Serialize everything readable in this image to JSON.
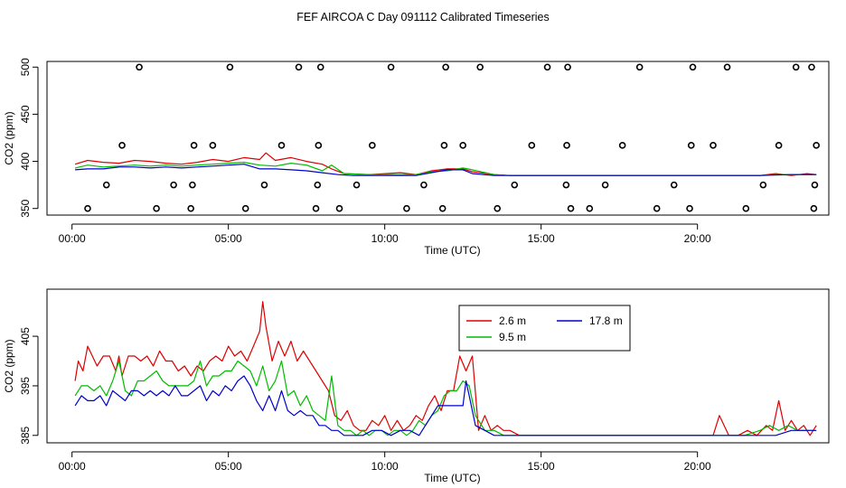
{
  "title": "FEF AIRCOA C  Day 091112  Calibrated Timeseries",
  "colors": {
    "c26": "#dd0000",
    "c95": "#00bb00",
    "c178": "#0000cc",
    "axis": "#000000"
  },
  "chart_data": [
    {
      "type": "line",
      "name": "full-range",
      "xlabel": "Time (UTC)",
      "ylabel": "CO2 (ppm)",
      "xlim": [
        -0.8,
        24.2
      ],
      "ylim": [
        343,
        506
      ],
      "xticks": [
        0,
        5,
        10,
        15,
        20
      ],
      "xtick_labels": [
        "00:00",
        "05:00",
        "10:00",
        "15:00",
        "20:00"
      ],
      "yticks": [
        350,
        400,
        450,
        500
      ],
      "ytick_labels": [
        "350",
        "400",
        "450",
        "500"
      ],
      "series": [
        {
          "name": "2.6 m",
          "color": "#dd0000",
          "x": [
            0.1,
            0.5,
            1,
            1.5,
            2,
            2.5,
            3,
            3.5,
            4,
            4.5,
            5,
            5.5,
            6,
            6.2,
            6.5,
            7,
            7.5,
            8,
            8.3,
            8.7,
            9.5,
            10.5,
            11,
            11.5,
            12,
            12.5,
            12.8,
            13.5,
            14,
            15,
            16,
            17,
            18,
            19,
            20,
            21,
            22,
            22.5,
            23,
            23.5,
            23.8
          ],
          "y": [
            397,
            401,
            399,
            398,
            401,
            400,
            398,
            397,
            399,
            402,
            400,
            404,
            402,
            409,
            401,
            404,
            400,
            397,
            392,
            387,
            386,
            388,
            386,
            390,
            392,
            392,
            389,
            386,
            385,
            385,
            385,
            385,
            385,
            385,
            385,
            385,
            385,
            387,
            385,
            387,
            386
          ]
        },
        {
          "name": "9.5 m",
          "color": "#00bb00",
          "x": [
            0.1,
            0.5,
            1,
            1.5,
            2,
            2.5,
            3,
            3.5,
            4,
            4.5,
            5,
            5.5,
            6,
            6.5,
            7,
            7.5,
            8,
            8.3,
            8.7,
            9.5,
            10.5,
            11,
            11.5,
            12,
            12.5,
            12.8,
            13.5,
            14,
            15,
            16,
            17,
            18,
            19,
            20,
            21,
            22,
            22.5,
            23,
            23.5,
            23.8
          ],
          "y": [
            393,
            396,
            394,
            395,
            396,
            395,
            396,
            395,
            396,
            397,
            398,
            399,
            396,
            395,
            398,
            396,
            390,
            396,
            387,
            386,
            386,
            386,
            389,
            390,
            393,
            391,
            386,
            385,
            385,
            385,
            385,
            385,
            385,
            385,
            385,
            385,
            386,
            386,
            386,
            386
          ]
        },
        {
          "name": "17.8 m",
          "color": "#0000cc",
          "x": [
            0.1,
            0.5,
            1,
            1.5,
            2,
            2.5,
            3,
            3.5,
            4,
            4.5,
            5,
            5.5,
            6,
            6.5,
            7,
            7.5,
            8,
            8.5,
            9,
            10,
            11,
            12,
            12.5,
            12.8,
            13.5,
            14,
            15,
            16,
            17,
            18,
            19,
            20,
            21,
            22,
            23,
            23.8
          ],
          "y": [
            391,
            392,
            392,
            394,
            394,
            393,
            394,
            393,
            394,
            395,
            396,
            397,
            392,
            392,
            391,
            390,
            388,
            386,
            385,
            385,
            385,
            391,
            391,
            387,
            385,
            385,
            385,
            385,
            385,
            385,
            385,
            385,
            385,
            385,
            386,
            386
          ]
        }
      ],
      "markers": {
        "name": "off-scale points",
        "x": [
          0.5,
          1.1,
          1.6,
          2.15,
          2.7,
          3.25,
          3.8,
          3.85,
          3.9,
          4.5,
          5.05,
          5.55,
          6.15,
          6.7,
          7.25,
          7.8,
          7.85,
          7.88,
          7.95,
          8.55,
          9.1,
          9.6,
          10.2,
          10.7,
          11.25,
          11.85,
          11.9,
          11.95,
          12.5,
          13.05,
          13.6,
          14.15,
          14.7,
          15.2,
          15.8,
          15.82,
          15.85,
          15.95,
          16.55,
          17.05,
          17.6,
          18.15,
          18.7,
          19.25,
          19.75,
          19.8,
          19.85,
          20.5,
          20.95,
          21.55,
          22.1,
          22.6,
          23.15,
          23.65,
          23.72,
          23.75,
          23.8
        ],
        "y": [
          350,
          375,
          417,
          500,
          350,
          375,
          350,
          375,
          417,
          417,
          500,
          350,
          375,
          417,
          500,
          350,
          375,
          417,
          500,
          350,
          375,
          417,
          500,
          350,
          375,
          350,
          417,
          500,
          417,
          500,
          350,
          375,
          417,
          500,
          375,
          417,
          500,
          350,
          350,
          375,
          417,
          500,
          350,
          375,
          350,
          417,
          500,
          417,
          500,
          350,
          375,
          417,
          500,
          500,
          350,
          375,
          417
        ]
      }
    },
    {
      "type": "line",
      "name": "zoomed",
      "xlabel": "Time (UTC)",
      "ylabel": "CO2 (ppm)",
      "xlim": [
        -0.8,
        24.2
      ],
      "ylim": [
        383.5,
        414.5
      ],
      "xticks": [
        0,
        5,
        10,
        15,
        20
      ],
      "xtick_labels": [
        "00:00",
        "05:00",
        "10:00",
        "15:00",
        "20:00"
      ],
      "yticks": [
        385,
        395,
        405
      ],
      "ytick_labels": [
        "385",
        "395",
        "405"
      ],
      "legend": [
        "2.6 m",
        "9.5 m",
        "17.8 m"
      ],
      "series": [
        {
          "name": "2.6 m",
          "color": "#dd0000",
          "x": [
            0.1,
            0.2,
            0.35,
            0.5,
            0.65,
            0.8,
            1,
            1.2,
            1.4,
            1.5,
            1.6,
            1.8,
            2,
            2.2,
            2.4,
            2.6,
            2.8,
            3,
            3.2,
            3.4,
            3.6,
            3.8,
            4,
            4.2,
            4.4,
            4.6,
            4.8,
            5,
            5.2,
            5.4,
            5.6,
            5.8,
            6,
            6.1,
            6.2,
            6.4,
            6.6,
            6.8,
            7,
            7.2,
            7.4,
            7.6,
            7.8,
            8,
            8.2,
            8.4,
            8.6,
            8.8,
            9,
            9.2,
            9.4,
            9.6,
            9.8,
            10,
            10.2,
            10.4,
            10.6,
            10.8,
            11,
            11.2,
            11.4,
            11.6,
            11.8,
            12,
            12.2,
            12.4,
            12.6,
            12.8,
            13,
            13.2,
            13.4,
            13.6,
            13.8,
            14,
            14.3,
            14.6,
            15,
            15.5,
            16,
            16.5,
            17,
            17.5,
            18,
            18.5,
            19,
            19.5,
            20,
            20.3,
            20.5,
            20.7,
            21,
            21.3,
            21.6,
            21.9,
            22.2,
            22.4,
            22.6,
            22.8,
            23,
            23.2,
            23.4,
            23.6,
            23.8
          ],
          "y": [
            396,
            400,
            398,
            403,
            401,
            399,
            401,
            401,
            398,
            401,
            397,
            401,
            401,
            400,
            401,
            399,
            402,
            400,
            400,
            398,
            399,
            397,
            399,
            398,
            400,
            401,
            400,
            403,
            401,
            402,
            400,
            403,
            406,
            412,
            407,
            400,
            404,
            401,
            404,
            400,
            402,
            400,
            398,
            396,
            394,
            389,
            388,
            390,
            387,
            386,
            386,
            388,
            387,
            389,
            386,
            388,
            386,
            387,
            389,
            388,
            391,
            393,
            390,
            394,
            394,
            401,
            398,
            401,
            386,
            389,
            386,
            387,
            386,
            386,
            385,
            385,
            385,
            385,
            385,
            385,
            385,
            385,
            385,
            385,
            385,
            385,
            385,
            385,
            385,
            389,
            385,
            385,
            386,
            385,
            387,
            386,
            392,
            386,
            388,
            386,
            387,
            385,
            387
          ]
        },
        {
          "name": "9.5 m",
          "color": "#00bb00",
          "x": [
            0.1,
            0.3,
            0.5,
            0.7,
            0.9,
            1.1,
            1.3,
            1.5,
            1.7,
            1.9,
            2.1,
            2.3,
            2.5,
            2.7,
            2.9,
            3.1,
            3.3,
            3.5,
            3.7,
            3.9,
            4.1,
            4.3,
            4.5,
            4.7,
            4.9,
            5.1,
            5.3,
            5.5,
            5.7,
            5.9,
            6.1,
            6.3,
            6.5,
            6.7,
            6.9,
            7.1,
            7.3,
            7.5,
            7.7,
            7.9,
            8.1,
            8.3,
            8.5,
            8.7,
            8.9,
            9.1,
            9.3,
            9.5,
            9.7,
            9.9,
            10.1,
            10.3,
            10.5,
            10.7,
            10.9,
            11.1,
            11.3,
            11.5,
            11.7,
            11.9,
            12.1,
            12.3,
            12.5,
            12.7,
            12.9,
            13.2,
            13.5,
            13.8,
            14.2,
            14.6,
            15,
            15.5,
            16,
            17,
            18,
            19,
            20,
            20.5,
            21,
            21.5,
            22,
            22.3,
            22.6,
            22.9,
            23.2,
            23.5,
            23.8
          ],
          "y": [
            393,
            395,
            395,
            394,
            395,
            393,
            396,
            400,
            394,
            393,
            396,
            396,
            397,
            398,
            396,
            395,
            395,
            395,
            395,
            396,
            400,
            395,
            397,
            397,
            398,
            398,
            400,
            399,
            398,
            395,
            399,
            394,
            396,
            400,
            393,
            394,
            391,
            393,
            390,
            389,
            388,
            397,
            387,
            386,
            386,
            385,
            386,
            385,
            386,
            386,
            385,
            386,
            386,
            385,
            386,
            388,
            387,
            389,
            390,
            393,
            394,
            394,
            396,
            395,
            389,
            386,
            386,
            385,
            385,
            385,
            385,
            385,
            385,
            385,
            385,
            385,
            385,
            385,
            385,
            385,
            386,
            387,
            386,
            387,
            386,
            386,
            386
          ]
        },
        {
          "name": "17.8 m",
          "color": "#0000cc",
          "x": [
            0.1,
            0.3,
            0.5,
            0.7,
            0.9,
            1.1,
            1.3,
            1.5,
            1.7,
            1.9,
            2.1,
            2.3,
            2.5,
            2.7,
            2.9,
            3.1,
            3.3,
            3.5,
            3.7,
            3.9,
            4.1,
            4.3,
            4.5,
            4.7,
            4.9,
            5.1,
            5.3,
            5.5,
            5.7,
            5.9,
            6.1,
            6.3,
            6.5,
            6.7,
            6.9,
            7.1,
            7.3,
            7.5,
            7.7,
            7.9,
            8.1,
            8.3,
            8.5,
            8.7,
            9,
            9.3,
            9.6,
            9.9,
            10.2,
            10.5,
            10.8,
            11.1,
            11.4,
            11.7,
            12,
            12.3,
            12.5,
            12.6,
            12.7,
            12.9,
            13.2,
            13.5,
            14,
            14.5,
            15,
            16,
            17,
            18,
            19,
            20,
            21,
            22,
            22.5,
            23,
            23.5,
            23.8
          ],
          "y": [
            391,
            393,
            392,
            392,
            393,
            391,
            394,
            393,
            392,
            394,
            394,
            393,
            394,
            393,
            394,
            393,
            395,
            393,
            393,
            394,
            395,
            392,
            394,
            393,
            395,
            394,
            396,
            397,
            395,
            392,
            390,
            393,
            390,
            394,
            390,
            389,
            390,
            389,
            389,
            387,
            387,
            386,
            386,
            385,
            385,
            385,
            386,
            386,
            385,
            386,
            386,
            385,
            388,
            391,
            391,
            391,
            391,
            396,
            393,
            387,
            386,
            385,
            385,
            385,
            385,
            385,
            385,
            385,
            385,
            385,
            385,
            385,
            385,
            386,
            386,
            386
          ]
        }
      ]
    }
  ]
}
